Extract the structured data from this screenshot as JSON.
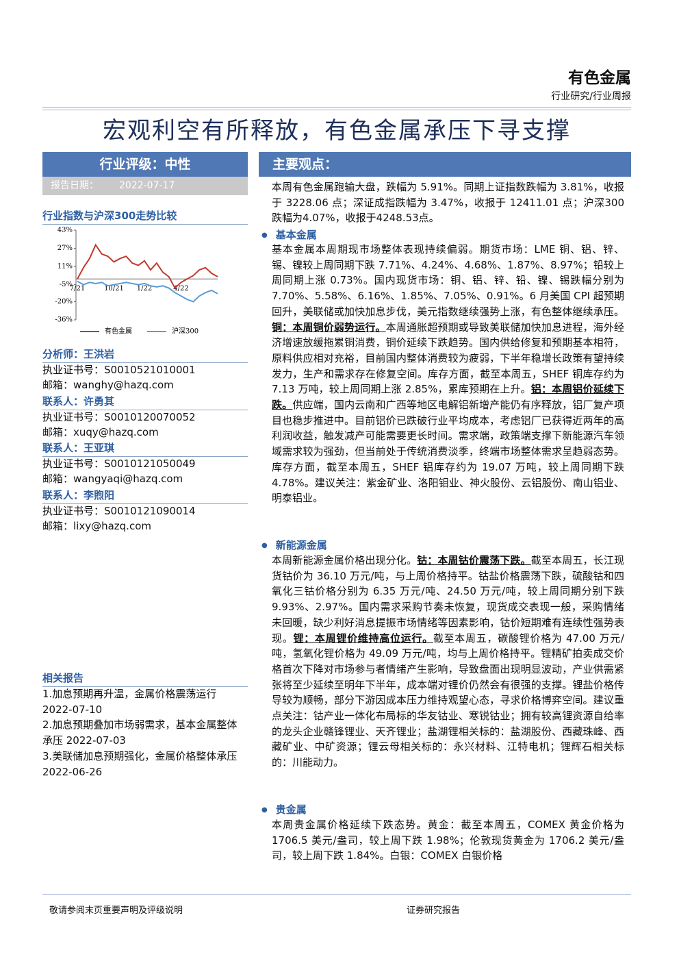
{
  "header": {
    "sector": "有色金属",
    "type": "行业研究/行业周报"
  },
  "title": "宏观利空有所释放，有色金属承压下寻支撑",
  "rating": "行业评级：中性",
  "report_date": {
    "label": "报告日期：",
    "value": "2022-07-17"
  },
  "chart_data": {
    "type": "line",
    "title": "行业指数与沪深300走势比较",
    "categories": [
      "7/21",
      null,
      null,
      null,
      null,
      null,
      "10/21",
      null,
      null,
      null,
      null,
      "1/22",
      null,
      null,
      null,
      null,
      null,
      "4/22",
      null,
      null,
      null,
      null,
      null,
      null
    ],
    "series": [
      {
        "name": "有色金属",
        "color": "#c0392b",
        "values": [
          0,
          10,
          18,
          30,
          22,
          20,
          15,
          18,
          20,
          14,
          12,
          16,
          8,
          14,
          6,
          2,
          -8,
          -3,
          0,
          3,
          8,
          10,
          5,
          2
        ]
      },
      {
        "name": "沪深300",
        "color": "#5b9bd5",
        "values": [
          -2,
          -5,
          -3,
          -4,
          -3,
          -6,
          -5,
          -4,
          -3,
          -4,
          -5,
          -4,
          -6,
          -7,
          -6,
          -8,
          -12,
          -15,
          -18,
          -20,
          -15,
          -12,
          -10,
          -13
        ]
      }
    ],
    "ylim": [
      -36,
      43
    ],
    "yticks": [
      {
        "value": 43,
        "label": "43%"
      },
      {
        "value": 27,
        "label": "27%"
      },
      {
        "value": 11,
        "label": "11%"
      },
      {
        "value": -5,
        "label": "-5%"
      },
      {
        "value": -20,
        "label": "-20%"
      },
      {
        "value": -36,
        "label": "-36%"
      }
    ]
  },
  "contacts": [
    {
      "heading": "分析师：王洪岩",
      "cert": "执业证书号：S0010521010001",
      "email": "邮箱：wanghy@hazq.com"
    },
    {
      "heading": "联系人：许勇其",
      "cert": "执业证书号：S0010120070052",
      "email": "邮箱：xuqy@hazq.com"
    },
    {
      "heading": "联系人：王亚琪",
      "cert": "执业证书号：S0010121050049",
      "email": "邮箱：wangyaqi@hazq.com"
    },
    {
      "heading": "联系人：李煦阳",
      "cert": "执业证书号：S0010121090014",
      "email": "邮箱：lixy@hazq.com"
    }
  ],
  "related": {
    "heading": "相关报告",
    "items": [
      "1.加息预期再升温，金属价格震荡运行 2022-07-10",
      "2.加息预期叠加市场弱需求，基本金属整体承压 2022-07-03",
      "3.美联储加息预期强化，金属价格整体承压 2022-06-26"
    ]
  },
  "main": {
    "heading": "主要观点：",
    "intro": [
      {
        "text": "本周有色金属跑输大盘，跌幅为 5.91%。同期上证指数跌幅为 3.81%，收报于 3228.06 点；深证成指跌幅为 3.47%，收报于 12411.01 点；沪深300跌幅为4.07%，收报于4248.53点。"
      }
    ],
    "sections": [
      {
        "heading": "基本金属",
        "runs": [
          {
            "text": "基本金属本周期现市场整体表现持续偏弱。期货市场：LME 铜、铝、锌、锡、镍较上周同期下跌 7.71%、4.24%、4.68%、1.87%、8.97%；铅较上周同期上涨 0.73%。国内现货市场：铜、铝、锌、铅、镍、锡跌幅分别为 7.70%、5.58%、6.16%、1.85%、7.05%、0.91%。6 月美国 CPI 超预期回升，美联储或加快加息步伐，美元指数继续强势上涨，有色整体继续承压。"
          },
          {
            "text": "铜：本周铜价弱势运行。",
            "bold": true
          },
          {
            "text": "本周通胀超预期或导致美联储加快加息进程，海外经济增速放缓拖累铜消费，铜价延续下跌趋势。国内供给修复和预期基本相符，原料供应相对充裕，目前国内整体消费较为疲弱，下半年稳增长政策有望持续发力，生产和需求存在修复空间。库存方面，截至本周五，SHEF 铜库存约为 7.13 万吨，较上周同期上涨 2.85%，累库预期在上升。"
          },
          {
            "text": "铝：本周铝价延续下跌。",
            "bold": true
          },
          {
            "text": "供应端，国内云南和广西等地区电解铝新增产能仍有序释放，铝厂复产项目也稳步推进中。目前铝价已跌破行业平均成本，考虑铝厂已获得近两年的高利润收益，触发减产可能需要更长时间。需求端，政策端支撑下新能源汽车领域需求较为强劲，但当前处于传统消费淡季，终端市场整体需求呈趋弱态势。库存方面，截至本周五，SHEF 铝库存约为 19.07 万吨，较上周同期下跌 4.78%。建议关注：紫金矿业、洛阳钼业、神火股份、云铝股份、南山铝业、明泰铝业。"
          }
        ]
      },
      {
        "heading": "新能源金属",
        "runs": [
          {
            "text": "本周新能源金属价格出现分化。"
          },
          {
            "text": "钴：本周钴价震荡下跌。",
            "bold": true
          },
          {
            "text": "截至本周五，长江现货钴价为 36.10 万元/吨，与上周价格持平。钴盐价格震荡下跌，硫酸钴和四氧化三钴价格分别为 6.35 万元/吨、24.50 万元/吨，较上周同期分别下跌 9.93%、2.97%。国内需求采购节奏未恢复，现货成交表现一般，采购情绪未回暖，缺少利好消息提振市场情绪等因素影响，钴价短期难有连续性强势表现。"
          },
          {
            "text": "锂：本周锂价维持高位运行。",
            "bold": true
          },
          {
            "text": "截至本周五，碳酸锂价格为 47.00 万元/吨，氢氧化锂价格为 49.09 万元/吨，均与上周价格持平。锂精矿拍卖成交价格首次下降对市场参与者情绪产生影响，导致盘面出现明显波动，产业供需紧张将至少延续至明年下半年，成本端对锂价仍然会有很强的支撑。锂盐价格传导较为顺畅，部分下游因成本压力维持观望心态，寻求价格博弈空间。建议重点关注：钴产业一体化布局标的华友钴业、寒锐钴业；拥有较高锂资源自给率的龙头企业赣锋锂业、天齐锂业；盐湖锂相关标的：盐湖股份、西藏珠峰、西藏矿业、中矿资源；锂云母相关标的：永兴材料、江特电机；锂辉石相关标的：川能动力。"
          }
        ]
      },
      {
        "heading": "贵金属",
        "runs": [
          {
            "text": "本周贵金属价格延续下跌态势。黄金：截至本周五，COMEX 黄金价格为 1706.5 美元/盎司，较上周下跌 1.98%；伦敦现货黄金为 1706.2 美元/盎司，较上周下跌 1.84%。白银：COMEX 白银价格"
          }
        ]
      }
    ]
  },
  "footer": {
    "left": "敬请参阅末页重要声明及评级说明",
    "right": "证券研究报告"
  }
}
